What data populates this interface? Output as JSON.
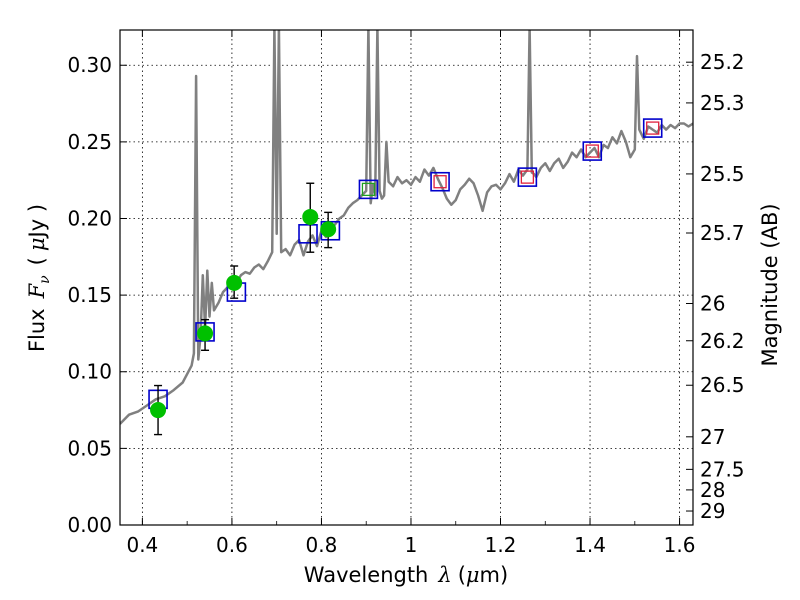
{
  "chart_data": {
    "type": "scatter",
    "xlabel": "Wavelength",
    "xlabel_symbol": "λ",
    "xlabel_unit_open": "(",
    "xlabel_unit_mu": "μ",
    "xlabel_unit_rest": "m)",
    "ylabel": "Flux",
    "ylabel_symbol": "F",
    "ylabel_subscript": "ν",
    "ylabel_unit_open": "(",
    "ylabel_unit_mu": "μ",
    "ylabel_unit_rest": "Jy )",
    "y2label": "Magnitude (AB)",
    "xlim": [
      0.35,
      1.63
    ],
    "ylim": [
      0.0,
      0.323
    ],
    "grid": true,
    "x_ticks": [
      0.4,
      0.6,
      0.8,
      1.0,
      1.2,
      1.4,
      1.6
    ],
    "x_tick_labels": [
      "0.4",
      "0.6",
      "0.8",
      "1",
      "1.2",
      "1.4",
      "1.6"
    ],
    "y_ticks": [
      0.0,
      0.05,
      0.1,
      0.15,
      0.2,
      0.25,
      0.3
    ],
    "y_tick_labels": [
      "0.00",
      "0.05",
      "0.10",
      "0.15",
      "0.20",
      "0.25",
      "0.30"
    ],
    "magnitude_ticks": [
      25.2,
      25.3,
      25.5,
      25.7,
      26,
      26.2,
      26.5,
      27,
      27.5,
      28,
      29
    ],
    "magnitude_tick_labels": [
      "25.2",
      "25.3",
      "25.5",
      "25.7",
      "26",
      "26.2",
      "26.5",
      "27",
      "27.5",
      "28",
      "29"
    ],
    "sed_model": {
      "color": "#808080",
      "x": [
        0.35,
        0.37,
        0.39,
        0.41,
        0.43,
        0.45,
        0.47,
        0.49,
        0.51,
        0.515,
        0.52,
        0.525,
        0.53,
        0.535,
        0.54,
        0.545,
        0.55,
        0.555,
        0.56,
        0.57,
        0.58,
        0.59,
        0.6,
        0.61,
        0.62,
        0.63,
        0.64,
        0.65,
        0.66,
        0.67,
        0.68,
        0.69,
        0.695,
        0.7,
        0.705,
        0.71,
        0.72,
        0.73,
        0.74,
        0.75,
        0.76,
        0.77,
        0.78,
        0.79,
        0.8,
        0.81,
        0.82,
        0.83,
        0.84,
        0.85,
        0.86,
        0.87,
        0.88,
        0.89,
        0.9,
        0.905,
        0.91,
        0.915,
        0.92,
        0.925,
        0.93,
        0.935,
        0.94,
        0.945,
        0.95,
        0.96,
        0.97,
        0.98,
        0.99,
        1.0,
        1.01,
        1.02,
        1.03,
        1.04,
        1.05,
        1.06,
        1.07,
        1.08,
        1.09,
        1.1,
        1.11,
        1.12,
        1.13,
        1.14,
        1.15,
        1.16,
        1.17,
        1.18,
        1.19,
        1.2,
        1.21,
        1.22,
        1.23,
        1.24,
        1.25,
        1.26,
        1.265,
        1.27,
        1.275,
        1.28,
        1.29,
        1.3,
        1.31,
        1.32,
        1.33,
        1.34,
        1.35,
        1.36,
        1.37,
        1.38,
        1.39,
        1.4,
        1.41,
        1.42,
        1.43,
        1.44,
        1.45,
        1.46,
        1.47,
        1.48,
        1.49,
        1.5,
        1.505,
        1.51,
        1.515,
        1.52,
        1.53,
        1.54,
        1.55,
        1.56,
        1.57,
        1.58,
        1.59,
        1.6,
        1.61,
        1.62,
        1.63
      ],
      "y": [
        0.066,
        0.072,
        0.074,
        0.078,
        0.082,
        0.084,
        0.088,
        0.093,
        0.104,
        0.112,
        0.293,
        0.108,
        0.124,
        0.163,
        0.128,
        0.166,
        0.136,
        0.158,
        0.14,
        0.145,
        0.152,
        0.155,
        0.156,
        0.158,
        0.163,
        0.165,
        0.164,
        0.168,
        0.17,
        0.167,
        0.172,
        0.178,
        0.325,
        0.19,
        0.325,
        0.178,
        0.18,
        0.176,
        0.183,
        0.186,
        0.176,
        0.185,
        0.189,
        0.182,
        0.192,
        0.188,
        0.194,
        0.196,
        0.2,
        0.202,
        0.207,
        0.21,
        0.212,
        0.215,
        0.218,
        0.325,
        0.21,
        0.222,
        0.215,
        0.325,
        0.218,
        0.213,
        0.215,
        0.25,
        0.224,
        0.221,
        0.227,
        0.223,
        0.225,
        0.222,
        0.227,
        0.224,
        0.232,
        0.228,
        0.233,
        0.226,
        0.22,
        0.213,
        0.209,
        0.212,
        0.219,
        0.222,
        0.226,
        0.223,
        0.215,
        0.205,
        0.217,
        0.221,
        0.222,
        0.219,
        0.223,
        0.229,
        0.224,
        0.232,
        0.228,
        0.232,
        0.325,
        0.23,
        0.229,
        0.227,
        0.233,
        0.236,
        0.231,
        0.236,
        0.239,
        0.233,
        0.237,
        0.243,
        0.24,
        0.245,
        0.24,
        0.243,
        0.246,
        0.24,
        0.248,
        0.246,
        0.253,
        0.249,
        0.257,
        0.25,
        0.24,
        0.245,
        0.306,
        0.258,
        0.255,
        0.252,
        0.26,
        0.258,
        0.256,
        0.261,
        0.258,
        0.261,
        0.259,
        0.262,
        0.262,
        0.26,
        0.262
      ]
    },
    "series": [
      {
        "marker": "circle",
        "color": "#00c000",
        "x": [
          0.435,
          0.54,
          0.605,
          0.775,
          0.815
        ],
        "y": [
          0.075,
          0.125,
          0.158,
          0.201,
          0.193
        ],
        "err_lo": [
          0.016,
          0.011,
          0.01,
          0.023,
          0.012
        ],
        "err_hi": [
          0.016,
          0.009,
          0.011,
          0.022,
          0.011
        ]
      },
      {
        "marker": "open-square",
        "color": "#0000cc",
        "x": [
          0.435,
          0.54,
          0.61,
          0.77,
          0.82,
          0.905,
          1.065,
          1.26,
          1.405,
          1.54
        ],
        "y": [
          0.082,
          0.126,
          0.152,
          0.19,
          0.192,
          0.219,
          0.224,
          0.227,
          0.244,
          0.259
        ]
      },
      {
        "marker": "small-open-square",
        "color": "#20a020",
        "x": [
          0.905
        ],
        "y": [
          0.219
        ]
      },
      {
        "marker": "small-open-square",
        "color": "#e0203c",
        "x": [
          1.065,
          1.26,
          1.405,
          1.54
        ],
        "y": [
          0.224,
          0.227,
          0.244,
          0.259
        ]
      }
    ]
  }
}
